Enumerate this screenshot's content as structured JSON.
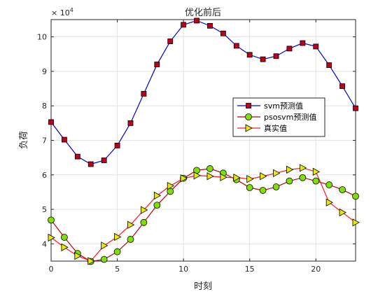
{
  "chart_data": {
    "type": "line",
    "title": "优化前后",
    "xlabel": "时刻",
    "ylabel": "负荷",
    "y_exponent_label": "× 10^4",
    "xlim": [
      0,
      23
    ],
    "ylim": [
      3.5,
      10.5
    ],
    "x_ticks": [
      0,
      5,
      10,
      15,
      20
    ],
    "y_ticks": [
      4,
      5,
      6,
      7,
      8,
      9,
      10
    ],
    "grid": true,
    "legend_position": "right",
    "x": [
      0,
      1,
      2,
      3,
      4,
      5,
      6,
      7,
      8,
      9,
      10,
      11,
      12,
      13,
      14,
      15,
      16,
      17,
      18,
      19,
      20,
      21,
      22,
      23
    ],
    "series": [
      {
        "name": "svm预测值",
        "line_color": "#0000c8",
        "marker": "square",
        "marker_color": "#c0001a",
        "values": [
          7.53,
          7.02,
          6.53,
          6.31,
          6.42,
          6.85,
          7.5,
          8.35,
          9.2,
          9.87,
          10.35,
          10.47,
          10.32,
          10.1,
          9.74,
          9.48,
          9.35,
          9.44,
          9.66,
          9.82,
          9.72,
          9.18,
          8.57,
          7.93
        ]
      },
      {
        "name": "psosvm预测值",
        "line_color": "#c00000",
        "marker": "circle",
        "marker_color": "#7fe000",
        "values": [
          4.69,
          4.19,
          3.72,
          3.49,
          3.55,
          3.77,
          4.13,
          4.62,
          5.12,
          5.52,
          5.9,
          6.13,
          6.18,
          6.05,
          5.86,
          5.63,
          5.55,
          5.65,
          5.82,
          5.92,
          5.82,
          5.71,
          5.57,
          5.38
        ]
      },
      {
        "name": "真实值",
        "line_color": "#ff1a1a",
        "marker": "triangle-right",
        "marker_color": "#e8e800",
        "values": [
          4.18,
          3.9,
          3.65,
          3.5,
          3.95,
          4.2,
          4.55,
          4.98,
          5.4,
          5.68,
          5.9,
          5.98,
          5.96,
          5.93,
          5.92,
          5.88,
          5.96,
          6.05,
          6.15,
          6.2,
          6.09,
          5.2,
          4.91,
          4.62
        ]
      }
    ]
  }
}
